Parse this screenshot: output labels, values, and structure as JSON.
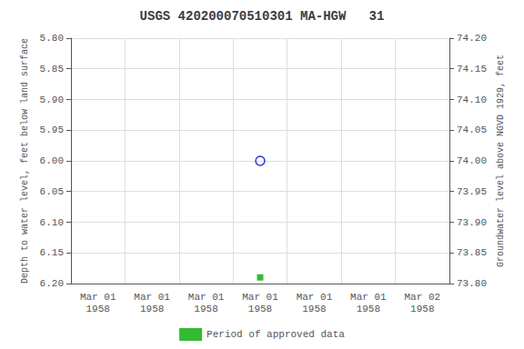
{
  "chart_data": {
    "type": "scatter",
    "title": "USGS 420200070510301 MA-HGW   31",
    "y_label": "Depth to water level, feet below land surface",
    "y2_label": "Groundwater level above NGVD 1929, feet",
    "categories": [
      "Mar 01\n1958",
      "Mar 01\n1958",
      "Mar 01\n1958",
      "Mar 01\n1958",
      "Mar 01\n1958",
      "Mar 01\n1958",
      "Mar 02\n1958"
    ],
    "series": [
      {
        "color": "#0000cc",
        "marker": "open_circle",
        "values": [
          null,
          null,
          null,
          6.0,
          null,
          null,
          null
        ]
      },
      {
        "name": "Period of approved data",
        "color": "#00aa00",
        "marker": "square",
        "values": [
          null,
          null,
          null,
          6.19,
          null,
          null,
          null
        ]
      }
    ],
    "ylim": [
      6.2,
      5.8
    ],
    "yticks": [
      {
        "value": 5.8,
        "label": "5.80"
      },
      {
        "value": 5.85,
        "label": "5.85"
      },
      {
        "value": 5.9,
        "label": "5.90"
      },
      {
        "value": 5.95,
        "label": "5.95"
      },
      {
        "value": 6.0,
        "label": "6.00"
      },
      {
        "value": 6.05,
        "label": "6.05"
      },
      {
        "value": 6.1,
        "label": "6.10"
      },
      {
        "value": 6.15,
        "label": "6.15"
      },
      {
        "value": 6.2,
        "label": "6.20"
      }
    ],
    "y2lim": [
      73.8,
      74.2
    ],
    "y2ticks": [
      {
        "value": 74.2,
        "label": "74.20"
      },
      {
        "value": 74.15,
        "label": "74.15"
      },
      {
        "value": 74.1,
        "label": "74.10"
      },
      {
        "value": 74.05,
        "label": "74.05"
      },
      {
        "value": 74.0,
        "label": "74.00"
      },
      {
        "value": 73.95,
        "label": "73.95"
      },
      {
        "value": 73.9,
        "label": "73.90"
      },
      {
        "value": 73.85,
        "label": "73.85"
      },
      {
        "value": 73.8,
        "label": "73.80"
      }
    ],
    "grid": true,
    "legend": "bottom"
  }
}
